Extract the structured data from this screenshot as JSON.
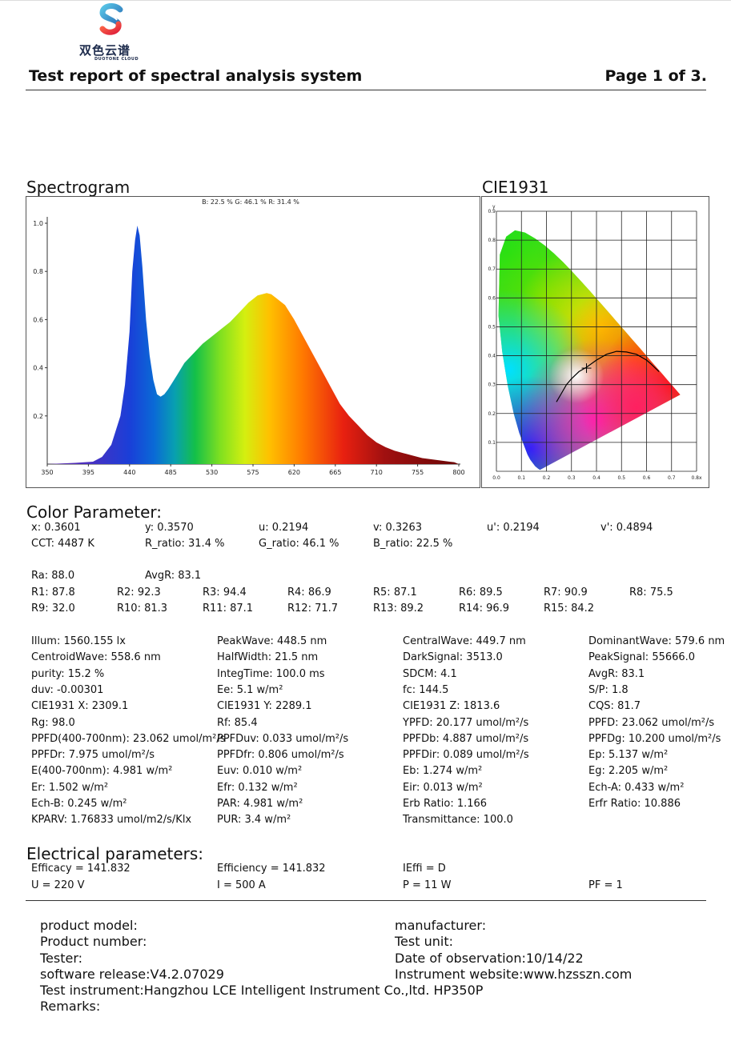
{
  "logo": {
    "name": "双色云谱",
    "sub": "DUOTONE CLOUD"
  },
  "header": {
    "title": "Test report of spectral analysis system",
    "page": "Page 1 of 3."
  },
  "spectrogram": {
    "title": "Spectrogram",
    "ratio_label": "B: 22.5 %  G: 46.1 %  R: 31.4 %"
  },
  "cie": {
    "title": "CIE1931"
  },
  "chart_data": [
    {
      "type": "area",
      "title": "",
      "xlabel": "",
      "ylabel": "",
      "xlim": [
        350,
        800
      ],
      "ylim": [
        0,
        1.0
      ],
      "x_ticks": [
        "350",
        "395",
        "440",
        "485",
        "530",
        "575",
        "620",
        "665",
        "710",
        "755",
        "800"
      ],
      "y_ticks": [
        "0.2",
        "0.4",
        "0.6",
        "0.8",
        "1.0"
      ],
      "x": [
        350,
        380,
        400,
        410,
        420,
        430,
        435,
        440,
        443,
        446,
        448.5,
        451,
        454,
        458,
        462,
        466,
        470,
        474,
        478,
        482,
        487,
        492,
        500,
        510,
        520,
        530,
        540,
        550,
        560,
        570,
        580,
        590,
        595,
        600,
        610,
        620,
        630,
        640,
        650,
        660,
        670,
        680,
        690,
        700,
        710,
        720,
        730,
        740,
        750,
        760,
        770,
        780,
        790,
        795,
        800
      ],
      "values": [
        0.0,
        0.005,
        0.01,
        0.03,
        0.08,
        0.2,
        0.33,
        0.55,
        0.8,
        0.93,
        0.99,
        0.95,
        0.82,
        0.6,
        0.45,
        0.35,
        0.29,
        0.28,
        0.29,
        0.31,
        0.34,
        0.37,
        0.42,
        0.46,
        0.5,
        0.53,
        0.56,
        0.59,
        0.63,
        0.67,
        0.7,
        0.71,
        0.705,
        0.69,
        0.66,
        0.6,
        0.53,
        0.46,
        0.39,
        0.32,
        0.25,
        0.2,
        0.16,
        0.12,
        0.09,
        0.07,
        0.055,
        0.045,
        0.035,
        0.025,
        0.02,
        0.015,
        0.01,
        0.008,
        0.0
      ]
    },
    {
      "type": "scatter",
      "title": "",
      "xlabel": "x",
      "ylabel": "y",
      "xlim": [
        0,
        0.8
      ],
      "ylim": [
        0,
        0.9
      ],
      "x_ticks": [
        "0.0",
        "0.1",
        "0.2",
        "0.3",
        "0.4",
        "0.5",
        "0.6",
        "0.7",
        "0.8x"
      ],
      "y_ticks": [
        "0.1",
        "0.2",
        "0.3",
        "0.4",
        "0.5",
        "0.6",
        "0.7",
        "0.8",
        "0.9"
      ],
      "point": {
        "x": 0.3601,
        "y": 0.357
      },
      "planckian": [
        [
          0.24,
          0.24
        ],
        [
          0.26,
          0.27
        ],
        [
          0.28,
          0.3
        ],
        [
          0.3,
          0.32
        ],
        [
          0.33,
          0.345
        ],
        [
          0.36,
          0.36
        ],
        [
          0.4,
          0.385
        ],
        [
          0.44,
          0.405
        ],
        [
          0.48,
          0.415
        ],
        [
          0.52,
          0.413
        ],
        [
          0.56,
          0.405
        ],
        [
          0.6,
          0.385
        ],
        [
          0.62,
          0.37
        ],
        [
          0.65,
          0.345
        ]
      ],
      "locus": [
        [
          0.1741,
          0.005
        ],
        [
          0.1669,
          0.0086
        ],
        [
          0.1547,
          0.0177
        ],
        [
          0.1355,
          0.0399
        ],
        [
          0.1241,
          0.0578
        ],
        [
          0.0913,
          0.1327
        ],
        [
          0.0687,
          0.2007
        ],
        [
          0.0454,
          0.295
        ],
        [
          0.0235,
          0.4127
        ],
        [
          0.0082,
          0.5384
        ],
        [
          0.0139,
          0.7502
        ],
        [
          0.0389,
          0.812
        ],
        [
          0.0743,
          0.8338
        ],
        [
          0.1142,
          0.8262
        ],
        [
          0.1547,
          0.8059
        ],
        [
          0.1929,
          0.7816
        ],
        [
          0.2296,
          0.7543
        ],
        [
          0.2658,
          0.7243
        ],
        [
          0.3016,
          0.6923
        ],
        [
          0.3373,
          0.6589
        ],
        [
          0.3731,
          0.6245
        ],
        [
          0.4087,
          0.5896
        ],
        [
          0.4441,
          0.5547
        ],
        [
          0.4788,
          0.5202
        ],
        [
          0.5125,
          0.4866
        ],
        [
          0.5448,
          0.4544
        ],
        [
          0.5752,
          0.4242
        ],
        [
          0.6029,
          0.3965
        ],
        [
          0.627,
          0.3725
        ],
        [
          0.6482,
          0.3514
        ],
        [
          0.6658,
          0.334
        ],
        [
          0.6801,
          0.3197
        ],
        [
          0.6915,
          0.3083
        ],
        [
          0.7006,
          0.2993
        ],
        [
          0.7079,
          0.292
        ],
        [
          0.714,
          0.2859
        ],
        [
          0.719,
          0.2809
        ],
        [
          0.7347,
          0.2653
        ]
      ]
    }
  ],
  "color_param": {
    "title": "Color Parameter:",
    "row1": [
      "x: 0.3601",
      "y: 0.3570",
      "u: 0.2194",
      "v: 0.3263",
      "u': 0.2194",
      "v': 0.4894"
    ],
    "row2": [
      "CCT: 4487 K",
      "R_ratio: 31.4 %",
      "G_ratio: 46.1 %",
      "B_ratio: 22.5 %"
    ],
    "ra": "Ra: 88.0",
    "avgr": "AvgR: 83.1",
    "r_row1": [
      "R1: 87.8",
      "R2: 92.3",
      "R3: 94.4",
      "R4: 86.9",
      "R5: 87.1",
      "R6: 89.5",
      "R7: 90.9",
      "R8: 75.5"
    ],
    "r_row2": [
      "R9: 32.0",
      "R10: 81.3",
      "R11: 87.1",
      "R12: 71.7",
      "R13: 89.2",
      "R14: 96.9",
      "R15: 84.2"
    ]
  },
  "params": [
    [
      "Illum: 1560.155 lx",
      "PeakWave: 448.5 nm",
      "CentralWave: 449.7 nm",
      "DominantWave: 579.6 nm"
    ],
    [
      "CentroidWave: 558.6 nm",
      "HalfWidth: 21.5 nm",
      "DarkSignal: 3513.0",
      "PeakSignal: 55666.0"
    ],
    [
      "purity: 15.2 %",
      "IntegTime: 100.0 ms",
      "SDCM: 4.1",
      "AvgR: 83.1"
    ],
    [
      "duv: -0.00301",
      "Ee: 5.1 w/m²",
      "fc: 144.5",
      "S/P: 1.8"
    ],
    [
      "CIE1931 X: 2309.1",
      "CIE1931 Y: 2289.1",
      "CIE1931 Z: 1813.6",
      "CQS: 81.7"
    ],
    [
      "Rg: 98.0",
      "Rf: 85.4",
      "YPFD: 20.177 umol/m²/s",
      "PPFD: 23.062 umol/m²/s"
    ],
    [
      "PPFD(400-700nm): 23.062 umol/m²/s",
      "PPFDuv: 0.033 umol/m²/s",
      "PPFDb: 4.887 umol/m²/s",
      "PPFDg: 10.200 umol/m²/s"
    ],
    [
      "PPFDr: 7.975 umol/m²/s",
      "PPFDfr: 0.806 umol/m²/s",
      "PPFDir: 0.089 umol/m²/s",
      "Ep: 5.137 w/m²"
    ],
    [
      "E(400-700nm): 4.981 w/m²",
      "Euv: 0.010 w/m²",
      "Eb: 1.274 w/m²",
      "Eg: 2.205 w/m²"
    ],
    [
      "Er: 1.502 w/m²",
      "Efr: 0.132 w/m²",
      "Eir: 0.013 w/m²",
      "Ech-A: 0.433 w/m²"
    ],
    [
      "Ech-B: 0.245 w/m²",
      "PAR: 4.981 w/m²",
      "Erb Ratio: 1.166",
      "Erfr Ratio: 10.886"
    ],
    [
      "KPARV: 1.76833 umol/m2/s/Klx",
      "PUR: 3.4 w/m²",
      "Transmittance: 100.0",
      ""
    ]
  ],
  "electrical": {
    "title": "Electrical parameters:",
    "row1": [
      "Efficacy = 141.832",
      "Efficiency = 141.832",
      "IEffi = D",
      ""
    ],
    "row2": [
      "U = 220 V",
      "I = 500 A",
      "P = 11 W",
      "PF = 1"
    ]
  },
  "footer": {
    "left": [
      "product model:",
      "Product number:",
      "Tester:",
      "software release:V4.2.07029"
    ],
    "right": [
      "manufacturer:",
      "Test unit:",
      "Date of observation:10/14/22",
      "Instrument website:www.hzsszn.com"
    ],
    "instrument": "Test instrument:Hangzhou LCE Intelligent Instrument Co.,ltd. HP350P",
    "remarks": "Remarks:"
  }
}
